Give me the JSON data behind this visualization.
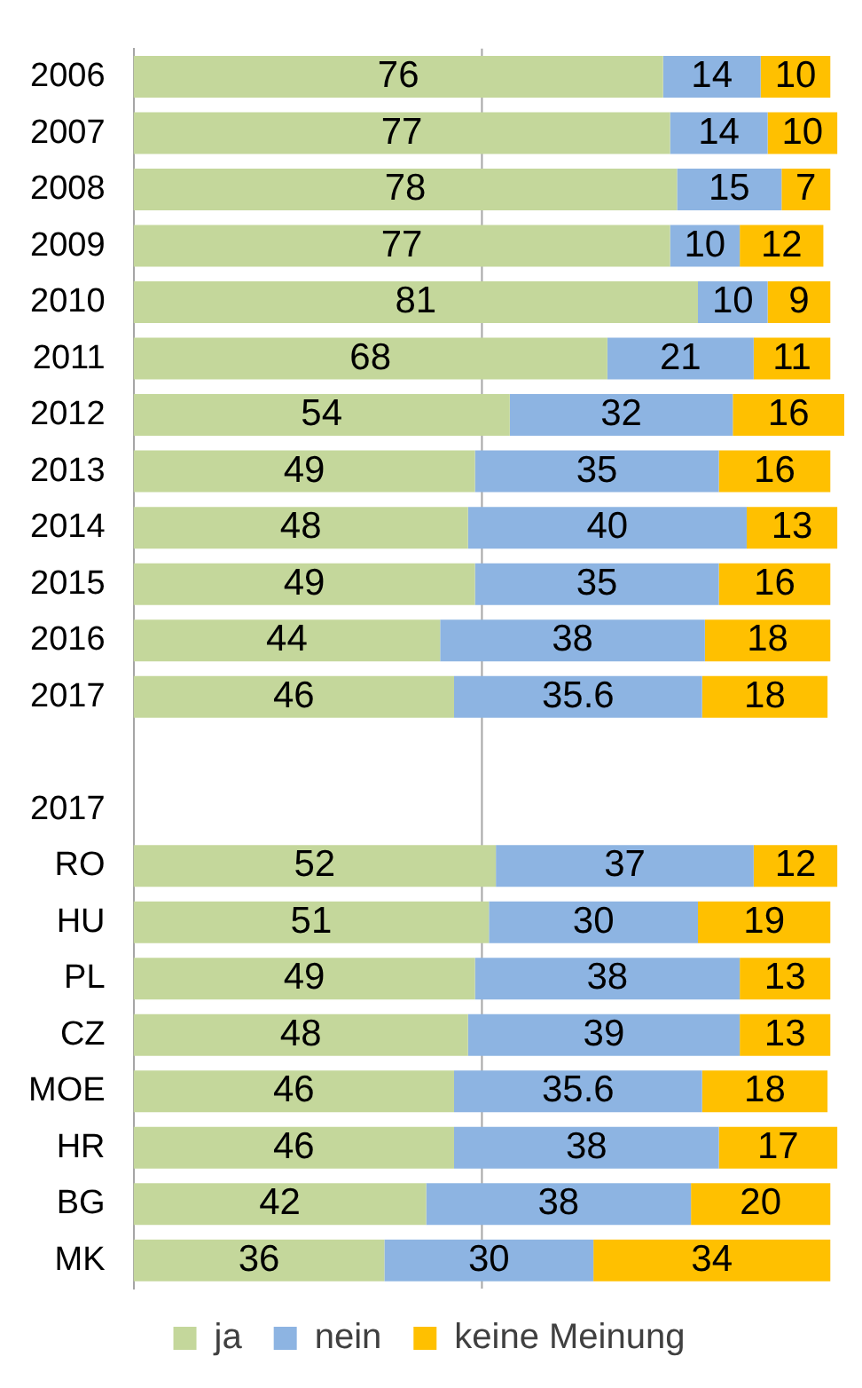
{
  "chart_data": {
    "type": "bar",
    "orientation": "horizontal",
    "stacked": true,
    "data_labels": true,
    "categories": [
      "2006",
      "2007",
      "2008",
      "2009",
      "2010",
      "2011",
      "2012",
      "2013",
      "2014",
      "2015",
      "2016",
      "2017",
      null,
      "2017",
      "RO",
      "HU",
      "PL",
      "CZ",
      "MOE",
      "HR",
      "BG",
      "MK"
    ],
    "series": [
      {
        "name": "ja",
        "color": "#c4d79b",
        "values": [
          76,
          77,
          78,
          77,
          81,
          68,
          54,
          49,
          48,
          49,
          44,
          46,
          null,
          null,
          52,
          51,
          49,
          48,
          46,
          46,
          42,
          36
        ]
      },
      {
        "name": "nein",
        "color": "#8db4e2",
        "values": [
          14,
          14,
          15,
          10,
          10,
          21,
          32,
          35,
          40,
          35,
          38,
          35.6,
          null,
          null,
          37,
          30,
          38,
          39,
          35.6,
          38,
          38,
          30
        ]
      },
      {
        "name": "keine Meinung",
        "color": "#ffc000",
        "values": [
          10,
          10,
          7,
          12,
          9,
          11,
          16,
          16,
          13,
          16,
          18,
          18,
          null,
          null,
          12,
          19,
          13,
          13,
          18,
          17,
          20,
          34
        ]
      }
    ],
    "xlim": [
      0,
      102
    ],
    "ref_lines": [
      {
        "axis": "x",
        "value": 50,
        "color": "#a6a6a6"
      }
    ],
    "tick_labels": "y",
    "legend": "bottom"
  }
}
